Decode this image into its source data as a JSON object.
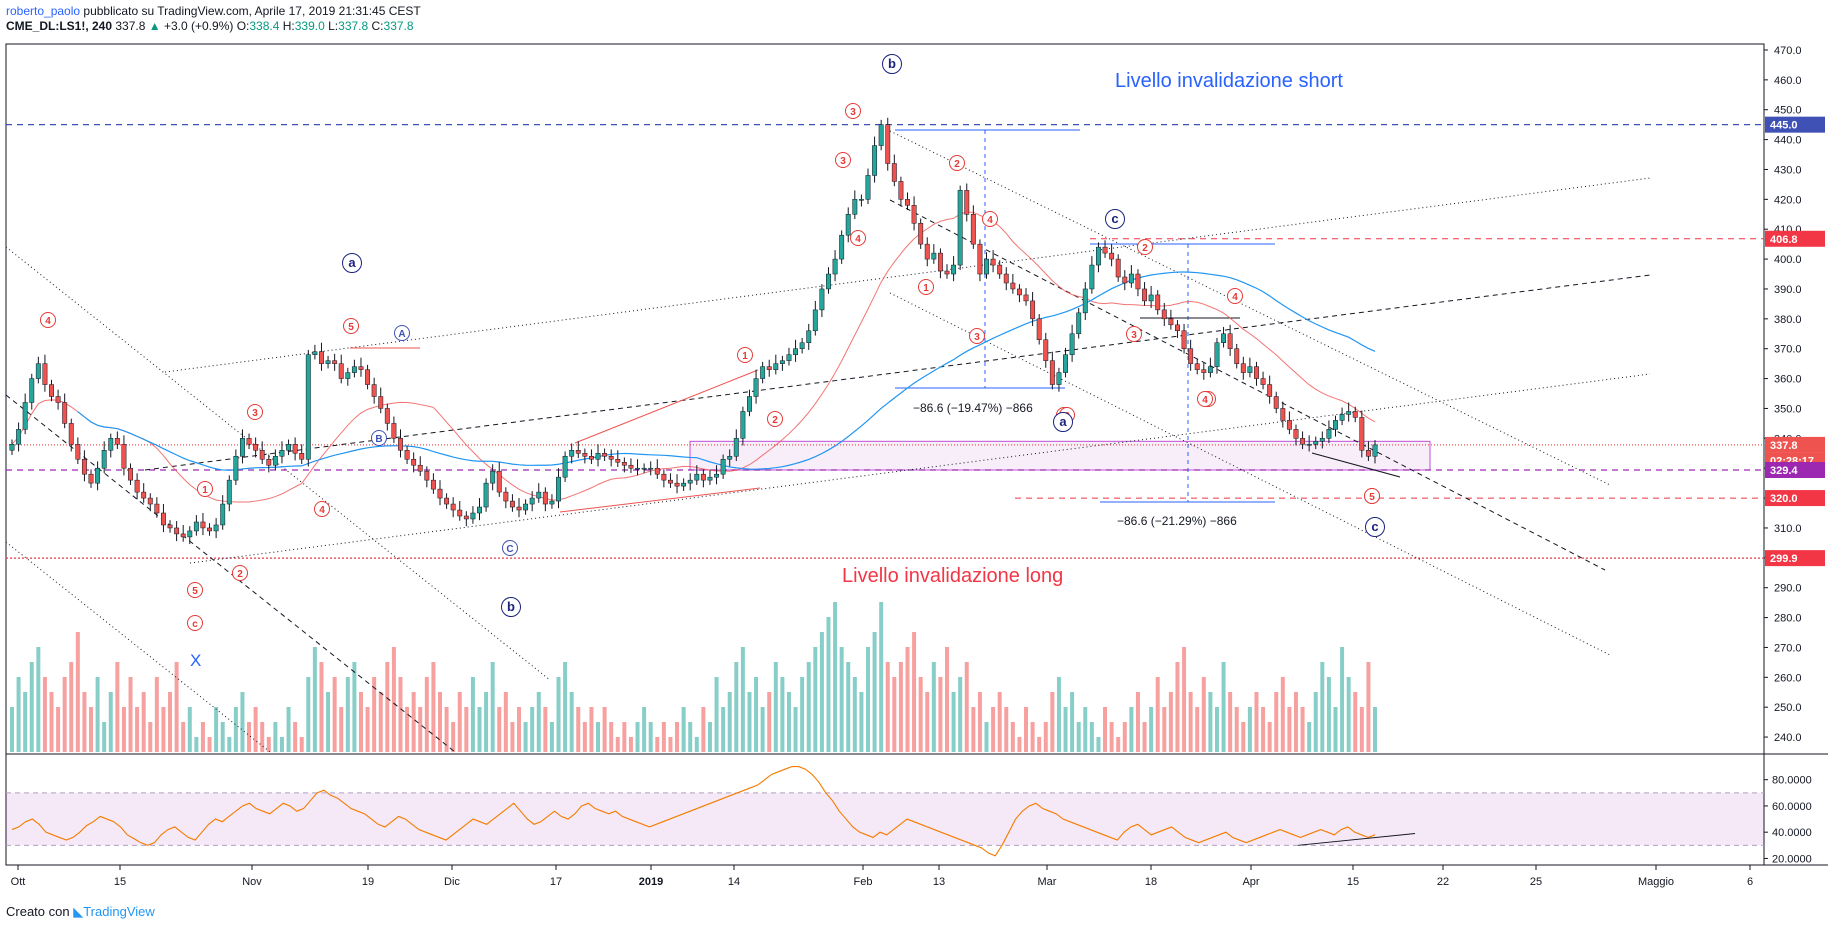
{
  "header": {
    "author": "roberto_paolo",
    "published": "pubblicato su TradingView.com, Aprile 17, 2019 21:31:45 CEST",
    "symbol": "CME_DL:LS1!, 240",
    "last": "337.8",
    "change": "+3.0 (+0.9%)",
    "o_label": "O:",
    "o": "338.4",
    "h_label": "H:",
    "h": "339.0",
    "l_label": "L:",
    "l": "337.8",
    "c_label": "C:",
    "c": "337.8"
  },
  "footer": {
    "prefix": "Creato con",
    "brand": "TradingView"
  },
  "chart_data": {
    "type": "candlestick",
    "y_axis": {
      "min": 235,
      "max": 472,
      "ticks": [
        240,
        250,
        260,
        270,
        280,
        290,
        300,
        310,
        320,
        330,
        340,
        350,
        360,
        370,
        380,
        390,
        400,
        410,
        420,
        430,
        440,
        450,
        460,
        470
      ]
    },
    "price_tags": [
      {
        "value": 445.0,
        "label": "445.0",
        "color": "#3f51b5"
      },
      {
        "value": 406.8,
        "label": "406.8",
        "color": "#f23645"
      },
      {
        "value": 337.8,
        "label": "337.8",
        "color": "#ef5350"
      },
      {
        "value": 332.5,
        "label": "02:28:17",
        "color": "#ef5350"
      },
      {
        "value": 329.4,
        "label": "329.4",
        "color": "#9c27b0"
      },
      {
        "value": 320.0,
        "label": "320.0",
        "color": "#f23645"
      },
      {
        "value": 299.9,
        "label": "299.9",
        "color": "#f23645"
      }
    ],
    "x_labels": [
      "Ott",
      "15",
      "Nov",
      "19",
      "Dic",
      "17",
      "2019",
      "14",
      "Feb",
      "13",
      "Mar",
      "18",
      "Apr",
      "15",
      "22",
      "25",
      "Maggio",
      "6"
    ],
    "x_label_values": [
      "Ott",
      "15",
      "Nov",
      "19",
      "Dic",
      "17",
      "2019",
      "14",
      "Feb",
      "13",
      "Mar",
      "18",
      "Apr",
      "15",
      "22",
      "25",
      "Maggio",
      "6"
    ],
    "closes": [
      338,
      343,
      352,
      360,
      365,
      358,
      354,
      352,
      345,
      338,
      333,
      328,
      325,
      330,
      336,
      340,
      338,
      330,
      326,
      322,
      320,
      318,
      315,
      311,
      310,
      308,
      307,
      309,
      312,
      310,
      309,
      311,
      318,
      326,
      334,
      340,
      338,
      336,
      333,
      331,
      334,
      336,
      338,
      335,
      333,
      368,
      369,
      365,
      366,
      365,
      360,
      362,
      364,
      363,
      358,
      354,
      350,
      345,
      340,
      336,
      333,
      331,
      329,
      326,
      323,
      320,
      318,
      316,
      314,
      313,
      315,
      317,
      325,
      329,
      322,
      319,
      317,
      316,
      318,
      320,
      322,
      318,
      319,
      327,
      334,
      336,
      335,
      334,
      333,
      335,
      334,
      333,
      332,
      331,
      330,
      330,
      330,
      330,
      328,
      326,
      325,
      324,
      325,
      326,
      328,
      326,
      327,
      328,
      333,
      334,
      340,
      349,
      354,
      360,
      364,
      363,
      365,
      366,
      368,
      370,
      372,
      376,
      383,
      390,
      395,
      400,
      408,
      415,
      420,
      420,
      428,
      438,
      445,
      432,
      426,
      420,
      418,
      412,
      405,
      400,
      402,
      396,
      395,
      398,
      423,
      415,
      405,
      395,
      400,
      398,
      395,
      392,
      390,
      388,
      386,
      380,
      373,
      366,
      358,
      362,
      368,
      375,
      382,
      390,
      398,
      404,
      402,
      400,
      394,
      392,
      395,
      390,
      386,
      388,
      383,
      380,
      378,
      376,
      370,
      365,
      363,
      362,
      364,
      372,
      375,
      370,
      365,
      362,
      364,
      360,
      358,
      354,
      350,
      346,
      343,
      340,
      338,
      338,
      339,
      340,
      343,
      346,
      348,
      349,
      347,
      336,
      334,
      337.8
    ],
    "volume_levels": [
      0.3,
      0.5,
      0.4,
      0.6,
      0.7,
      0.5,
      0.4,
      0.3,
      0.5,
      0.6,
      0.8,
      0.4,
      0.3,
      0.5,
      0.2,
      0.4,
      0.6,
      0.3,
      0.5,
      0.3,
      0.4,
      0.2,
      0.5,
      0.3,
      0.4,
      0.6,
      0.2,
      0.3,
      0.1,
      0.2,
      0.1,
      0.3,
      0.2,
      0.1,
      0.3,
      0.4,
      0.2,
      0.3,
      0.2,
      0.1,
      0.2,
      0.1,
      0.3,
      0.2,
      0.1,
      0.5,
      0.7,
      0.6,
      0.4,
      0.5,
      0.3,
      0.5,
      0.6,
      0.4,
      0.3,
      0.5,
      0.4,
      0.6,
      0.7,
      0.5,
      0.3,
      0.4,
      0.3,
      0.5,
      0.6,
      0.4,
      0.3,
      0.2,
      0.4,
      0.3,
      0.5,
      0.3,
      0.4,
      0.6,
      0.3,
      0.4,
      0.2,
      0.3,
      0.2,
      0.3,
      0.4,
      0.3,
      0.2,
      0.5,
      0.6,
      0.4,
      0.3,
      0.2,
      0.3,
      0.2,
      0.3,
      0.2,
      0.1,
      0.2,
      0.1,
      0.2,
      0.3,
      0.2,
      0.1,
      0.2,
      0.1,
      0.2,
      0.3,
      0.2,
      0.1,
      0.3,
      0.2,
      0.5,
      0.3,
      0.4,
      0.6,
      0.7,
      0.4,
      0.5,
      0.3,
      0.4,
      0.6,
      0.5,
      0.4,
      0.3,
      0.5,
      0.6,
      0.7,
      0.8,
      0.9,
      1.0,
      0.7,
      0.6,
      0.5,
      0.4,
      0.7,
      0.8,
      1.0,
      0.6,
      0.5,
      0.6,
      0.7,
      0.8,
      0.5,
      0.4,
      0.6,
      0.5,
      0.7,
      0.4,
      0.5,
      0.6,
      0.3,
      0.4,
      0.2,
      0.3,
      0.4,
      0.3,
      0.2,
      0.1,
      0.3,
      0.2,
      0.1,
      0.2,
      0.4,
      0.5,
      0.3,
      0.4,
      0.2,
      0.3,
      0.2,
      0.1,
      0.3,
      0.2,
      0.1,
      0.2,
      0.3,
      0.4,
      0.2,
      0.3,
      0.5,
      0.3,
      0.4,
      0.6,
      0.7,
      0.4,
      0.3,
      0.5,
      0.4,
      0.3,
      0.6,
      0.4,
      0.3,
      0.2,
      0.3,
      0.4,
      0.3,
      0.2,
      0.4,
      0.5,
      0.3,
      0.4,
      0.3,
      0.2,
      0.4,
      0.6,
      0.5,
      0.3,
      0.7,
      0.5,
      0.4,
      0.3,
      0.6
    ],
    "volume_axis_labels": [
      "240.0",
      "250.0",
      "260.0",
      "270.0",
      "280.0",
      "290.0"
    ],
    "rsi": {
      "ticks": [
        "80.0000",
        "60.0000",
        "40.0000",
        "20.0000"
      ],
      "tick_values": [
        80,
        60,
        40,
        20
      ],
      "band": [
        30,
        70
      ],
      "values": [
        42,
        44,
        48,
        50,
        46,
        40,
        38,
        36,
        34,
        36,
        40,
        45,
        48,
        52,
        50,
        48,
        44,
        38,
        35,
        32,
        30,
        32,
        38,
        42,
        44,
        40,
        36,
        34,
        40,
        46,
        50,
        48,
        52,
        56,
        60,
        62,
        58,
        56,
        54,
        58,
        62,
        60,
        56,
        58,
        64,
        70,
        72,
        68,
        66,
        62,
        58,
        56,
        54,
        50,
        46,
        44,
        48,
        52,
        50,
        46,
        42,
        40,
        38,
        36,
        34,
        38,
        42,
        46,
        50,
        48,
        46,
        50,
        54,
        58,
        62,
        56,
        50,
        46,
        48,
        52,
        56,
        52,
        50,
        54,
        60,
        62,
        58,
        56,
        54,
        56,
        52,
        50,
        48,
        46,
        44,
        46,
        48,
        50,
        52,
        54,
        56,
        58,
        60,
        62,
        64,
        66,
        68,
        70,
        72,
        74,
        76,
        80,
        84,
        86,
        88,
        90,
        90,
        88,
        84,
        78,
        70,
        64,
        56,
        50,
        44,
        40,
        38,
        36,
        40,
        38,
        42,
        46,
        50,
        48,
        46,
        44,
        42,
        40,
        38,
        36,
        34,
        32,
        30,
        28,
        24,
        22,
        30,
        40,
        50,
        56,
        60,
        62,
        58,
        56,
        54,
        50,
        48,
        46,
        44,
        42,
        40,
        38,
        36,
        34,
        40,
        44,
        46,
        42,
        38,
        40,
        42,
        44,
        40,
        36,
        34,
        32,
        34,
        36,
        38,
        40,
        36,
        34,
        32,
        34,
        36,
        38,
        40,
        42,
        40,
        38,
        36,
        38,
        40,
        42,
        40,
        38,
        42,
        44,
        40,
        38,
        36,
        38
      ]
    },
    "annotations": [
      "Livello invalidazione short",
      "Livello invalidazione long",
      "−86.6 (−19.47%) −866",
      "−86.6 (−21.29%) −866"
    ],
    "wave_labels": {
      "red_circles": [
        "4",
        "3",
        "1",
        "5",
        "4",
        "2",
        "5",
        "3",
        "4",
        "1",
        "2",
        "5",
        "3",
        "4",
        "1",
        "2",
        "3",
        "4",
        "5",
        "2",
        "1",
        "3",
        "4",
        "3",
        "5",
        "c"
      ],
      "blue_circles": [
        "a",
        "b",
        "c",
        "b",
        "a",
        "c"
      ],
      "blue_small": [
        "A",
        "B",
        "C"
      ],
      "x_mark": "X"
    }
  }
}
